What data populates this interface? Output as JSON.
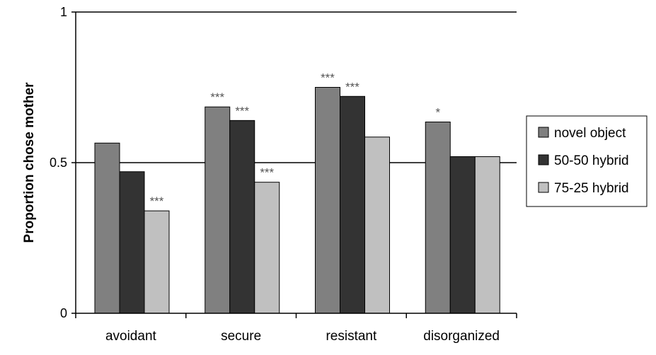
{
  "chart_data": {
    "type": "bar",
    "ylabel": "Proportion chose mother",
    "ylim": [
      0,
      1
    ],
    "yticks": [
      0,
      0.5,
      1
    ],
    "ytick_labels": [
      "0",
      "0.5",
      "1"
    ],
    "categories": [
      "avoidant",
      "secure",
      "resistant",
      "disorganized"
    ],
    "series": [
      {
        "name": "novel object",
        "color": "#808080",
        "values": [
          0.565,
          0.685,
          0.75,
          0.635
        ],
        "annotations": [
          "",
          "***",
          "***",
          "*"
        ]
      },
      {
        "name": "50-50 hybrid",
        "color": "#333333",
        "values": [
          0.47,
          0.64,
          0.72,
          0.52
        ],
        "annotations": [
          "",
          "***",
          "***",
          ""
        ]
      },
      {
        "name": "75-25 hybrid",
        "color": "#c0c0c0",
        "values": [
          0.34,
          0.435,
          0.585,
          0.52
        ],
        "annotations": [
          "***",
          "***",
          "",
          ""
        ]
      }
    ],
    "gridlines": [
      0.5,
      1
    ],
    "legend": "right"
  }
}
